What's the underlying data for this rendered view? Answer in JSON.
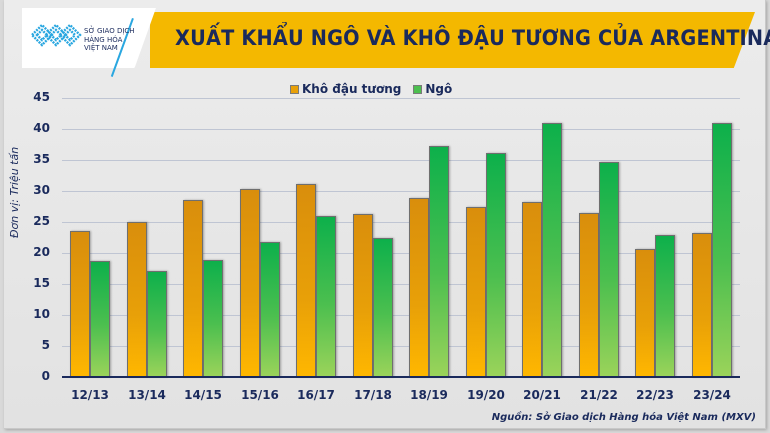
{
  "logo": {
    "lines": "SỞ GIAO DỊCH\nHÀNG HÓA\nVIỆT NAM"
  },
  "header": {
    "title": "XUẤT KHẨU NGÔ VÀ KHÔ ĐẬU TƯƠNG CỦA ARGENTINA"
  },
  "legend": [
    {
      "label": "Khô đậu tương",
      "color": "#e8a008"
    },
    {
      "label": "Ngô",
      "color": "#4cbf4f"
    }
  ],
  "y_axis_title": "Đơn vị: Triệu tấn",
  "source": "Nguồn: Sở Giao dịch Hàng hóa Việt Nam (MXV)",
  "chart_data": {
    "type": "bar",
    "title": "XUẤT KHẨU NGÔ VÀ KHÔ ĐẬU TƯƠNG CỦA ARGENTINA",
    "xlabel": "",
    "ylabel": "Đơn vị: Triệu tấn",
    "ylim": [
      0,
      45
    ],
    "yticks": [
      0,
      5,
      10,
      15,
      20,
      25,
      30,
      35,
      40,
      45
    ],
    "grid": true,
    "legend_position": "top",
    "categories": [
      "12/13",
      "13/14",
      "14/15",
      "15/16",
      "16/17",
      "17/18",
      "18/19",
      "19/20",
      "20/21",
      "21/22",
      "22/23",
      "23/24"
    ],
    "series": [
      {
        "name": "Khô đậu tương",
        "color": "#e8a008",
        "values": [
          23.5,
          25.0,
          28.5,
          30.3,
          31.2,
          26.3,
          28.8,
          27.4,
          28.3,
          26.5,
          20.7,
          23.3
        ]
      },
      {
        "name": "Ngô",
        "color": "#4cbf4f",
        "values": [
          18.7,
          17.1,
          18.9,
          21.7,
          26.0,
          22.4,
          37.3,
          36.2,
          40.9,
          34.7,
          22.9,
          40.9
        ]
      }
    ],
    "annotations": [
      "Nguồn: Sở Giao dịch Hàng hóa Việt Nam (MXV)"
    ]
  }
}
